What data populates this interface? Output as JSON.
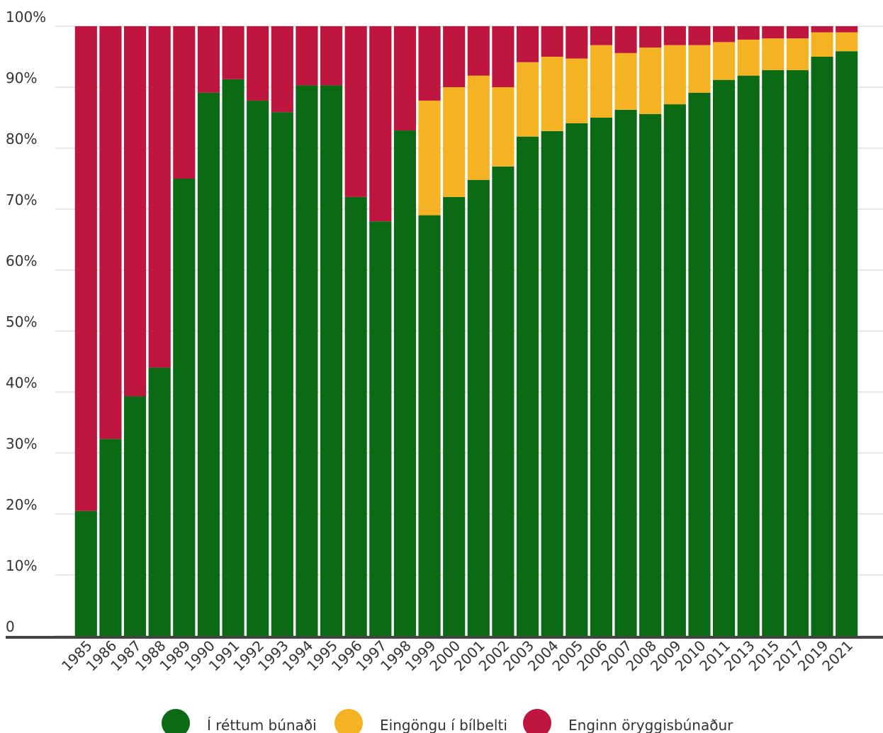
{
  "chart_data": {
    "type": "stacked_bar",
    "categories": [
      "1985",
      "1986",
      "1987",
      "1988",
      "1989",
      "1990",
      "1991",
      "1992",
      "1993",
      "1994",
      "1995",
      "1996",
      "1997",
      "1998",
      "1999",
      "2000",
      "2001",
      "2002",
      "2003",
      "2004",
      "2005",
      "2006",
      "2007",
      "2008",
      "2009",
      "2010",
      "2011",
      "2013",
      "2015",
      "2017",
      "2019",
      "2021"
    ],
    "series": [
      {
        "name": "Í réttum búnaði",
        "color": "#0b6b14",
        "values": [
          20.5,
          32.3,
          39.3,
          44,
          75,
          89.1,
          91.3,
          87.8,
          85.9,
          90.3,
          90.3,
          72,
          68,
          82.9,
          69,
          72,
          74.8,
          77,
          81.9,
          82.8,
          84.1,
          85,
          86.3,
          85.6,
          87.2,
          89.1,
          91.2,
          91.9,
          92.8,
          92.8,
          95,
          95.9
        ]
      },
      {
        "name": "Eingöngu í bílbelti",
        "color": "#f5b223",
        "values": [
          0,
          0,
          0,
          0,
          0,
          0,
          0,
          0,
          0,
          0,
          0,
          0,
          0,
          0,
          18.8,
          18,
          17.1,
          13,
          12.2,
          12.2,
          10.6,
          11.9,
          9.3,
          10.9,
          9.7,
          7.8,
          6.2,
          5.9,
          5.2,
          5.2,
          4,
          3.1
        ]
      },
      {
        "name": "Enginn öryggisbúnaður",
        "color": "#be163f",
        "values": [
          79.5,
          67.7,
          60.7,
          56,
          25,
          10.9,
          8.7,
          12.2,
          14.1,
          9.7,
          9.7,
          28,
          32,
          17.1,
          12.2,
          10,
          8.1,
          10,
          5.9,
          5,
          5.3,
          3.1,
          4.4,
          3.5,
          3.1,
          3.1,
          2.6,
          2.2,
          2,
          2,
          1,
          1
        ]
      }
    ],
    "ylim": [
      0,
      100
    ],
    "yticks": [
      0,
      {
        "value": 10,
        "label": "10%"
      },
      {
        "value": 20,
        "label": "20%"
      },
      {
        "value": 30,
        "label": "30%"
      },
      {
        "value": 40,
        "label": "40%"
      },
      {
        "value": 50,
        "label": "50%"
      },
      {
        "value": 60,
        "label": "60%"
      },
      {
        "value": 70,
        "label": "70%"
      },
      {
        "value": 80,
        "label": "80%"
      },
      {
        "value": 90,
        "label": "90%"
      },
      {
        "value": 100,
        "label": "100%"
      }
    ],
    "grid": true
  }
}
